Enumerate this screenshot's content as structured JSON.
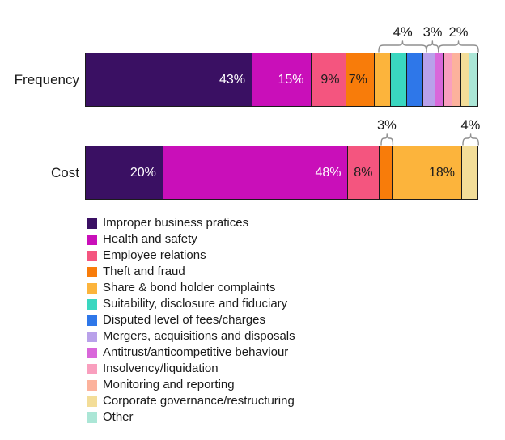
{
  "chart_data": {
    "type": "bar",
    "orientation": "horizontal",
    "stacked": true,
    "unit": "%",
    "categories": [
      "Frequency",
      "Cost"
    ],
    "series": [
      {
        "name": "Improper business pratices",
        "color": "#3a1063",
        "label_color": "#ffffff",
        "values": [
          43,
          20
        ]
      },
      {
        "name": "Health and safety",
        "color": "#c90fb9",
        "label_color": "#ffffff",
        "values": [
          15,
          48
        ]
      },
      {
        "name": "Employee relations",
        "color": "#f4557f",
        "label_color": "#1d1d1d",
        "values": [
          9,
          8
        ]
      },
      {
        "name": "Theft and fraud",
        "color": "#f87c0a",
        "label_color": "#1d1d1d",
        "values": [
          7,
          3
        ]
      },
      {
        "name": "Share & bond holder complaints",
        "color": "#fcb43c",
        "label_color": "#1d1d1d",
        "values": [
          4,
          18
        ]
      },
      {
        "name": "Suitability, disclosure and fiduciary",
        "color": "#3ad7c0",
        "label_color": "#1d1d1d",
        "values": [
          4,
          0
        ]
      },
      {
        "name": "Disputed level of fees/charges",
        "color": "#2e77e9",
        "label_color": "#1d1d1d",
        "values": [
          4,
          0
        ]
      },
      {
        "name": "Mergers, acquisitions and disposals",
        "color": "#b9a1ea",
        "label_color": "#1d1d1d",
        "values": [
          3,
          0
        ]
      },
      {
        "name": "Antitrust/anticompetitive behaviour",
        "color": "#d967da",
        "label_color": "#1d1d1d",
        "values": [
          2,
          0
        ]
      },
      {
        "name": "Insolvency/liquidation",
        "color": "#f99fbe",
        "label_color": "#1d1d1d",
        "values": [
          2,
          0
        ]
      },
      {
        "name": "Monitoring and reporting",
        "color": "#fcb29c",
        "label_color": "#1d1d1d",
        "values": [
          2,
          0
        ]
      },
      {
        "name": "Corporate governance/restructuring",
        "color": "#f3dd98",
        "label_color": "#1d1d1d",
        "values": [
          2,
          4
        ]
      },
      {
        "name": "Other",
        "color": "#abe6d6",
        "label_color": "#1d1d1d",
        "values": [
          2,
          0
        ]
      }
    ],
    "inside_label_min_value": 7,
    "annotations": [
      {
        "bar": 0,
        "label": "4%",
        "start_series": 4,
        "end_series": 6
      },
      {
        "bar": 0,
        "label": "3%",
        "start_series": 7,
        "end_series": 7
      },
      {
        "bar": 0,
        "label": "2%",
        "start_series": 8,
        "end_series": 12
      },
      {
        "bar": 1,
        "label": "3%",
        "start_series": 3,
        "end_series": 3
      },
      {
        "bar": 1,
        "label": "4%",
        "start_series": 11,
        "end_series": 11
      }
    ],
    "legend_position": "bottom-left",
    "grid": false,
    "axis_lines": false,
    "brace_color": "#8f8f8f",
    "segment_border_color": "#1b1b1b"
  }
}
